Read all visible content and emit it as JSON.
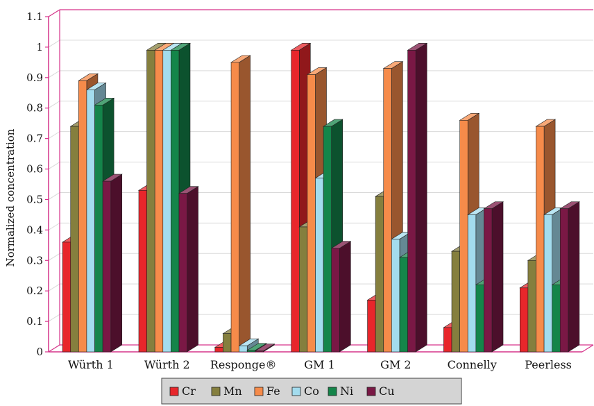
{
  "chart_data": {
    "type": "bar",
    "title": "",
    "xlabel": "",
    "ylabel": "Normalized concentration",
    "ylim": [
      0,
      1.1
    ],
    "yticks": [
      "0",
      "0.1",
      "0.2",
      "0.3",
      "0.4",
      "0.5",
      "0.6",
      "0.7",
      "0.8",
      "0.9",
      "1",
      "1.1"
    ],
    "grid": true,
    "legend_position": "bottom",
    "categories": [
      "Würth 1",
      "Würth 2",
      "Responge®",
      "GM 1",
      "GM 2",
      "Connelly",
      "Peerless"
    ],
    "series": [
      {
        "name": "Cr",
        "color": "#e8262b",
        "values": [
          0.36,
          0.53,
          0.015,
          0.99,
          0.17,
          0.08,
          0.21
        ]
      },
      {
        "name": "Mn",
        "color": "#857f3e",
        "values": [
          0.74,
          0.99,
          0.06,
          0.41,
          0.51,
          0.33,
          0.3
        ]
      },
      {
        "name": "Fe",
        "color": "#f68b4a",
        "values": [
          0.89,
          0.99,
          0.95,
          0.91,
          0.93,
          0.76,
          0.74
        ]
      },
      {
        "name": "Co",
        "color": "#a3dcee",
        "values": [
          0.86,
          0.99,
          0.02,
          0.57,
          0.37,
          0.45,
          0.45
        ]
      },
      {
        "name": "Ni",
        "color": "#14854a",
        "values": [
          0.81,
          0.99,
          0.005,
          0.74,
          0.31,
          0.22,
          0.22
        ]
      },
      {
        "name": "Cu",
        "color": "#7a1845",
        "values": [
          0.56,
          0.52,
          0.003,
          0.34,
          0.99,
          0.47,
          0.47
        ]
      }
    ]
  }
}
